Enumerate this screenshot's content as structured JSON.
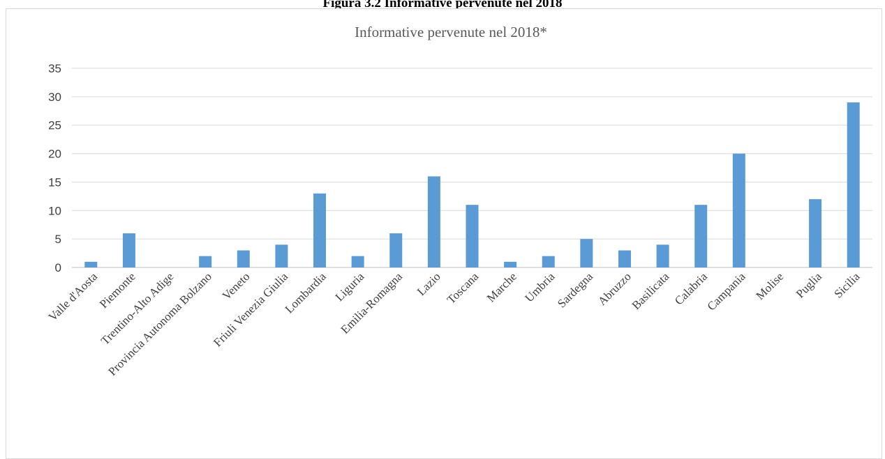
{
  "figure_caption": "Figura 3.2 Informative pervenute nel 2018",
  "chart_data": {
    "type": "bar",
    "title": "Informative pervenute nel 2018*",
    "xlabel": "",
    "ylabel": "",
    "ylim": [
      0,
      35
    ],
    "yticks": [
      0,
      5,
      10,
      15,
      20,
      25,
      30,
      35
    ],
    "grid": true,
    "legend": "none",
    "bar_color": "#5b9bd5",
    "categories": [
      "Valle d'Aosta",
      "Piemonte",
      "Trentino-Alto Adige",
      "Provincia Autonoma Bolzano",
      "Veneto",
      "Friuli Venezia Giulia",
      "Lombardia",
      "Liguria",
      "Emilia-Romagna",
      "Lazio",
      "Toscana",
      "Marche",
      "Umbria",
      "Sardegna",
      "Abruzzo",
      "Basilicata",
      "Calabria",
      "Campania",
      "Molise",
      "Puglia",
      "Sicilia"
    ],
    "values": [
      1,
      6,
      0,
      2,
      3,
      4,
      13,
      2,
      6,
      16,
      11,
      1,
      2,
      5,
      3,
      4,
      11,
      20,
      0,
      12,
      29
    ]
  }
}
